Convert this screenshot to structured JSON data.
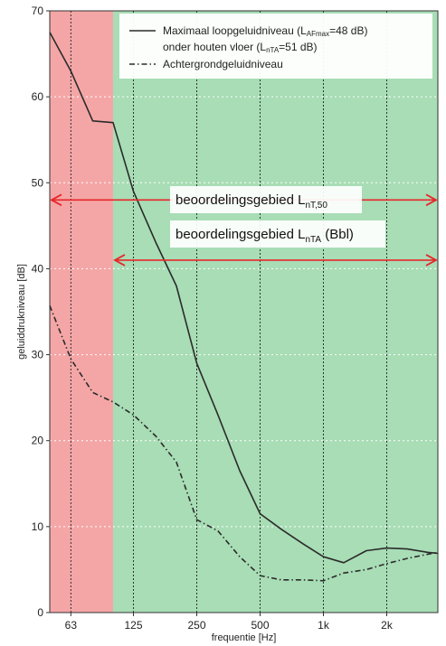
{
  "chart_data": {
    "type": "line",
    "xlabel": "frequentie [Hz]",
    "ylabel": "geluiddrukniveau [dB]",
    "x_scale": "log",
    "xlim": [
      50,
      3500
    ],
    "ylim": [
      0,
      70
    ],
    "yticks": [
      0,
      10,
      20,
      30,
      40,
      50,
      60,
      70
    ],
    "xticks": [
      {
        "value": 63,
        "label": "63"
      },
      {
        "value": 125,
        "label": "125"
      },
      {
        "value": 250,
        "label": "250"
      },
      {
        "value": 500,
        "label": "500"
      },
      {
        "value": 1000,
        "label": "1k"
      },
      {
        "value": 2000,
        "label": "2k"
      }
    ],
    "grid": true,
    "regions": [
      {
        "from": 50,
        "to": 100,
        "color": "#f4a6a6"
      },
      {
        "from": 100,
        "to": 3500,
        "color": "#a8ddb5"
      }
    ],
    "series": [
      {
        "style": "solid",
        "color": "#2b2b2b",
        "legend_text": "Maximaal loopgeluidniveau (L",
        "legend_sub1": "AFmax",
        "legend_text_b": "=48 dB)",
        "legend_line2_text": "onder houten vloer (L",
        "legend_sub2": "nTA",
        "legend_line2_text_b": "=51 dB)",
        "x": [
          50,
          63,
          80,
          100,
          125,
          160,
          200,
          250,
          315,
          400,
          500,
          630,
          800,
          1000,
          1250,
          1600,
          2000,
          2500,
          3150,
          3500
        ],
        "y": [
          67.5,
          63,
          57.2,
          57,
          49,
          43,
          38,
          29,
          23,
          16.5,
          11.5,
          9.7,
          8,
          6.5,
          5.8,
          7.2,
          7.5,
          7.4,
          7,
          6.9
        ]
      },
      {
        "style": "dashdot",
        "color": "#2b2b2b",
        "legend_text": "Achtergrondgeluidniveau",
        "x": [
          50,
          63,
          80,
          100,
          125,
          160,
          200,
          250,
          315,
          400,
          500,
          630,
          800,
          1000,
          1250,
          1600,
          2000,
          2500,
          3150,
          3500
        ],
        "y": [
          35.7,
          29.5,
          25.6,
          24.5,
          23,
          20.5,
          17.5,
          10.8,
          9.5,
          6.5,
          4.3,
          3.8,
          3.8,
          3.7,
          4.6,
          5,
          5.7,
          6.3,
          6.8,
          7
        ]
      }
    ],
    "annotations": [
      {
        "text": "beoordelingsgebied L",
        "sub": "nT,50",
        "tail": "",
        "from": 50,
        "to": 3500,
        "y": 48
      },
      {
        "text": "beoordelingsgebied L",
        "sub": "nTA",
        "tail": " (Bbl)",
        "from": 100,
        "to": 3500,
        "y": 41
      }
    ]
  }
}
